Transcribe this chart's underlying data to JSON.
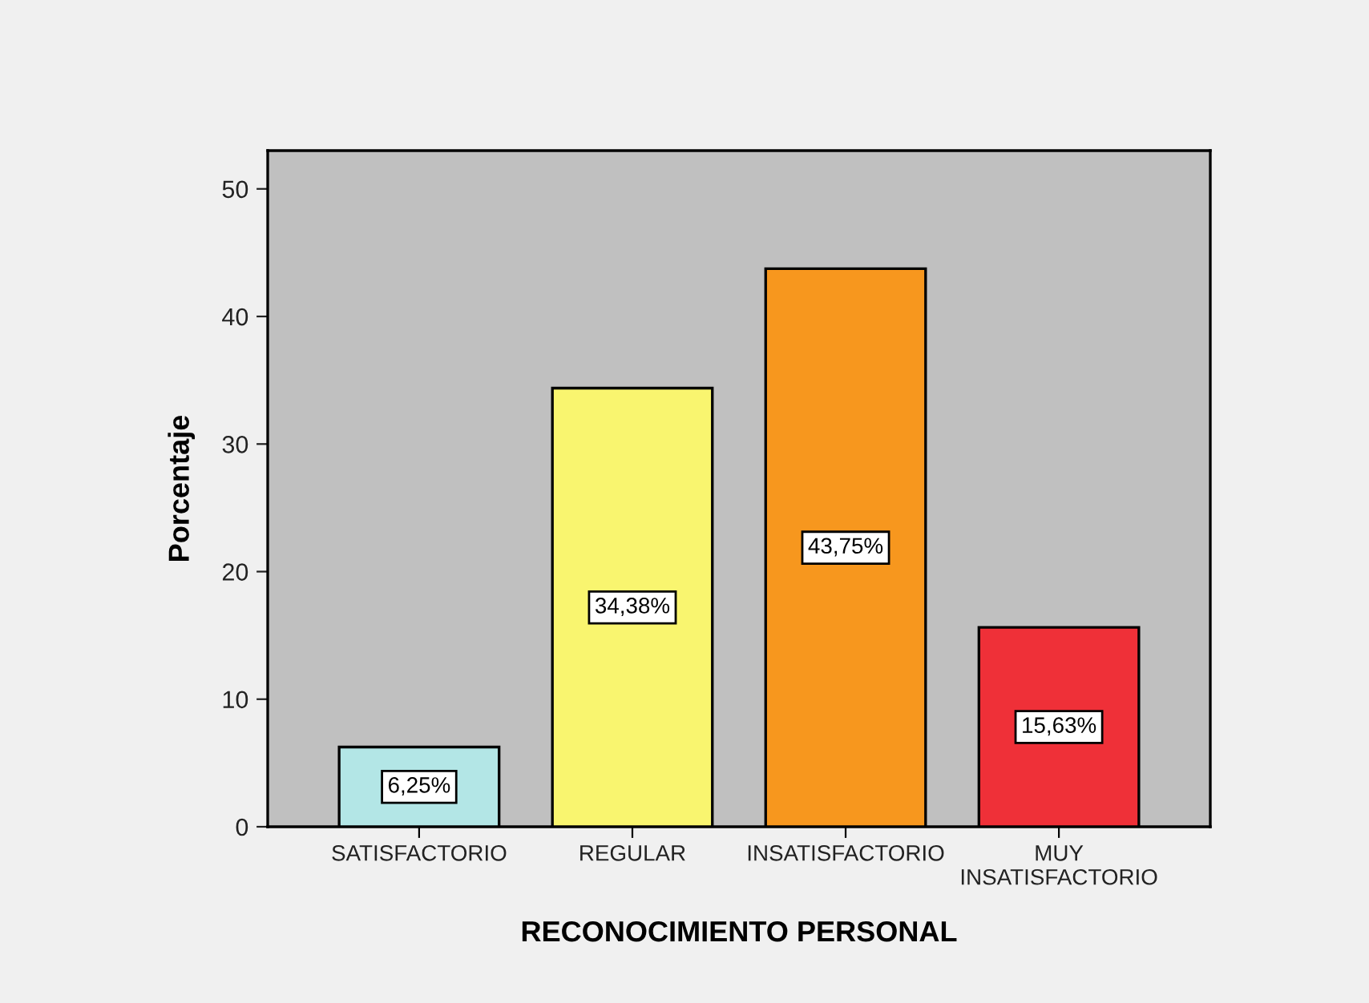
{
  "chart_data": {
    "type": "bar",
    "xlabel": "RECONOCIMIENTO PERSONAL",
    "ylabel": "Porcentaje",
    "categories": [
      "SATISFACTORIO",
      "REGULAR",
      "INSATISFACTORIO",
      "MUY\nINSATISFACTORIO"
    ],
    "values": [
      6.25,
      34.38,
      43.75,
      15.63
    ],
    "colors": [
      "#b3e6e6",
      "#f9f56f",
      "#f7971e",
      "#ef3038"
    ],
    "value_labels": [
      "6,25%",
      "34,38%",
      "43,75%",
      "15,63%"
    ],
    "ylim": [
      0,
      53
    ],
    "yticks": [
      0,
      10,
      20,
      30,
      40,
      50
    ],
    "grid": false,
    "legend": false
  }
}
